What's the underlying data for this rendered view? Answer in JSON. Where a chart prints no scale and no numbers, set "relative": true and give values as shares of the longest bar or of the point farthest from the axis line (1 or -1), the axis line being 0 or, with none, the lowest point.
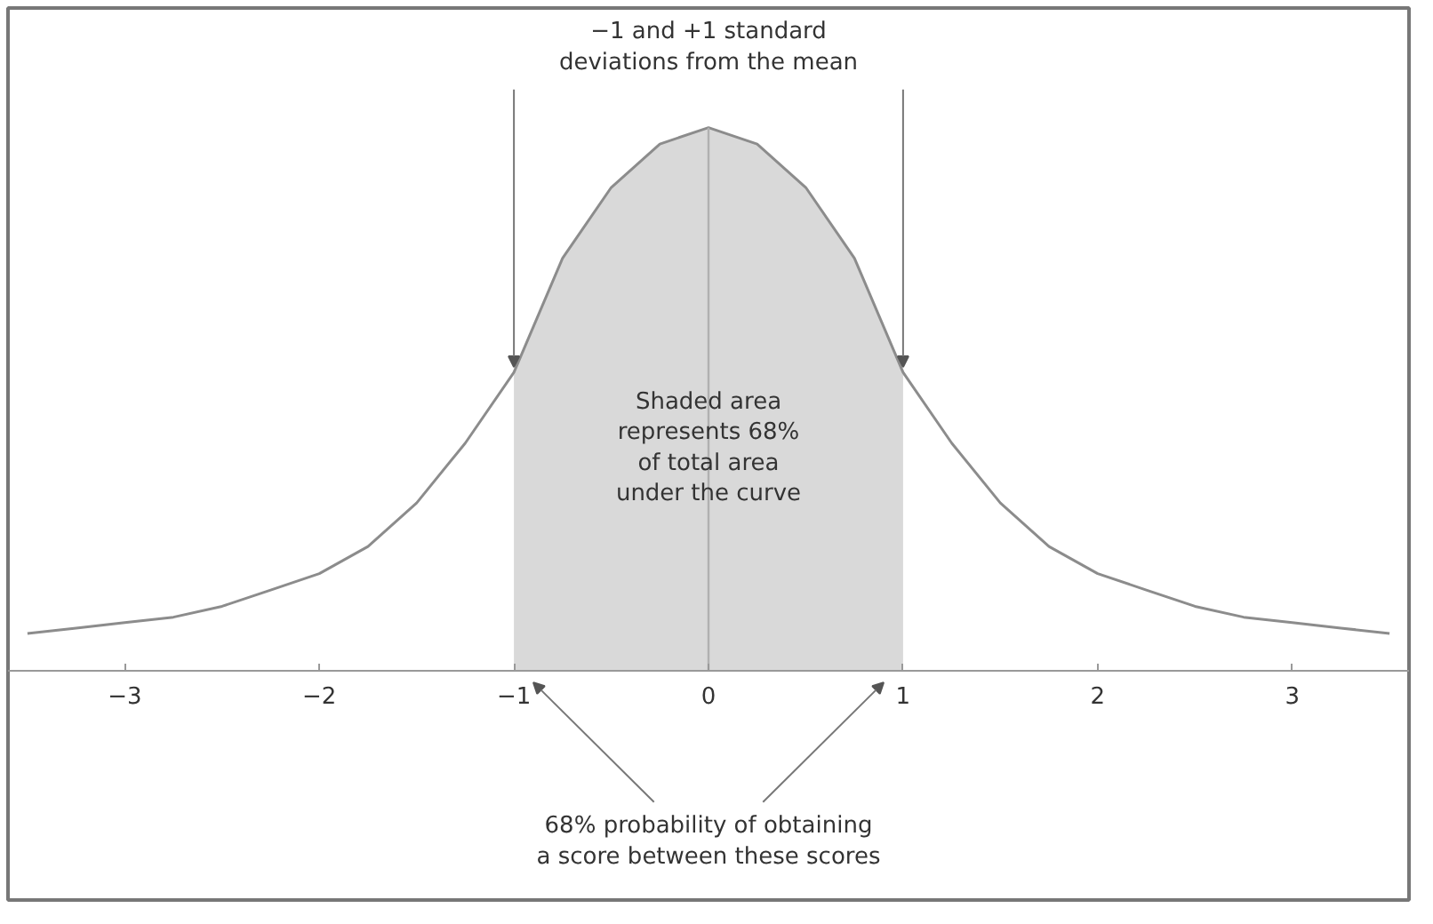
{
  "chart_data": {
    "type": "line",
    "relative": true,
    "x": [
      -3.5,
      -3.25,
      -3,
      -2.75,
      -2.5,
      -2.25,
      -2,
      -1.75,
      -1.5,
      -1.25,
      -1,
      -0.75,
      -0.5,
      -0.25,
      0,
      0.25,
      0.5,
      0.75,
      1,
      1.25,
      1.5,
      1.75,
      2,
      2.25,
      2.5,
      2.75,
      3,
      3.25,
      3.5
    ],
    "series": [
      {
        "color": "#8c8c8c",
        "values": [
          0.07,
          0.08,
          0.09,
          0.1,
          0.12,
          0.15,
          0.18,
          0.23,
          0.31,
          0.42,
          0.55,
          0.76,
          0.89,
          0.97,
          1.0,
          0.97,
          0.89,
          0.76,
          0.55,
          0.42,
          0.31,
          0.23,
          0.18,
          0.15,
          0.12,
          0.1,
          0.09,
          0.08,
          0.07
        ]
      }
    ],
    "xlim": [
      -3.6,
      3.6
    ],
    "xticks": [
      {
        "value": -3,
        "label": "−3"
      },
      {
        "value": -2,
        "label": "−2"
      },
      {
        "value": -1,
        "label": "−1"
      },
      0,
      1,
      2,
      3
    ],
    "bands": [
      {
        "axis": "x",
        "from": -1,
        "to": 1,
        "color": "#d9d9d9"
      }
    ],
    "ref_lines": [
      {
        "axis": "x",
        "value": 0,
        "color": "#b0b0b0"
      }
    ],
    "annotations": [
      "−1 and +1 standard\ndeviations from the mean",
      "Shaded area\nrepresents 68%\nof total area\nunder the curve",
      "68% probability of obtaining\na score between these scores"
    ]
  }
}
